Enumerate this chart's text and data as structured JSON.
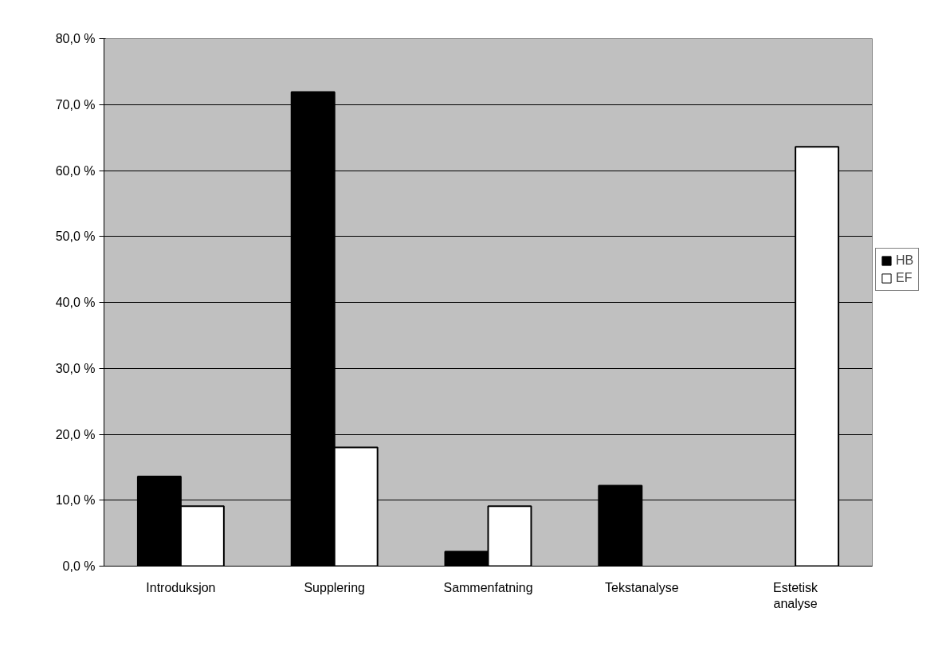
{
  "chart_data": {
    "type": "bar",
    "categories": [
      "Introduksjon",
      "Supplering",
      "Sammenfatning",
      "Tekstanalyse",
      "Estetisk\nanalyse"
    ],
    "series": [
      {
        "name": "HB",
        "color": "#000000",
        "values": [
          13.6,
          71.9,
          2.2,
          12.2,
          0
        ]
      },
      {
        "name": "EF",
        "color": "#ffffff",
        "values": [
          9.1,
          18.0,
          9.1,
          0,
          63.6
        ]
      }
    ],
    "ylim": [
      0,
      80
    ],
    "yticks": [
      {
        "value": 0,
        "label": "0,0 %"
      },
      {
        "value": 10,
        "label": "10,0 %"
      },
      {
        "value": 20,
        "label": "20,0 %"
      },
      {
        "value": 30,
        "label": "30,0 %"
      },
      {
        "value": 40,
        "label": "40,0 %"
      },
      {
        "value": 50,
        "label": "50,0 %"
      },
      {
        "value": 60,
        "label": "60,0 %"
      },
      {
        "value": 70,
        "label": "70,0 %"
      },
      {
        "value": 80,
        "label": "80,0 %"
      }
    ],
    "grid": "y",
    "legend": "right"
  }
}
